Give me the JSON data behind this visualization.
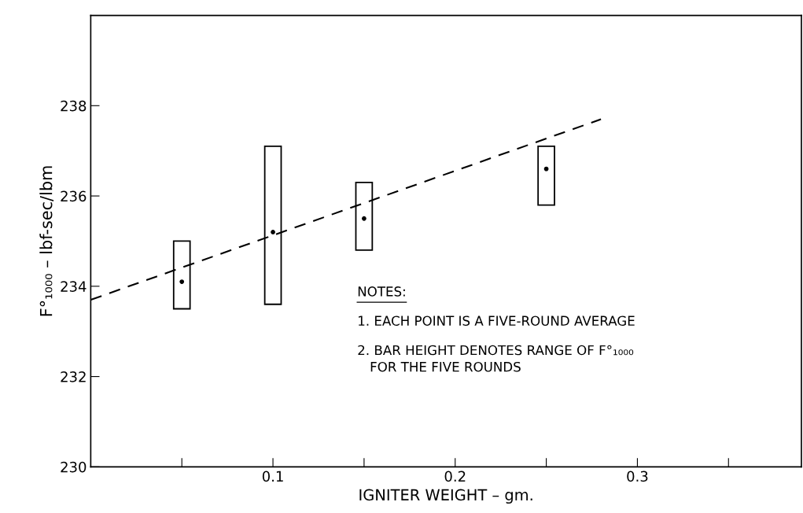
{
  "chart_data": {
    "type": "bar",
    "xlabel": "IGNITER WEIGHT – gm.",
    "ylabel": "F°₁₀₀₀ – lbf-sec/lbm",
    "x": [
      0.05,
      0.1,
      0.15,
      0.25
    ],
    "xlim": [
      0,
      0.39
    ],
    "xticks": [
      {
        "value": 0.05,
        "label": null
      },
      0.1,
      {
        "value": 0.15,
        "label": null
      },
      0.2,
      {
        "value": 0.25,
        "label": null
      },
      0.3,
      {
        "value": 0.35,
        "label": null
      }
    ],
    "ylim": [
      230,
      240
    ],
    "yticks": [
      230,
      232,
      234,
      236,
      238
    ],
    "grid": false,
    "series": [
      {
        "color": "#ffffff",
        "base": [
          233.5,
          233.6,
          234.8,
          235.8
        ],
        "values": [
          1.5,
          3.5,
          1.5,
          1.3
        ]
      },
      {
        "type": "scatter",
        "color": "#000000",
        "marker": "circle",
        "values": [
          234.1,
          235.2,
          235.5,
          236.6
        ]
      },
      {
        "type": "line",
        "color": "#000000",
        "line_style": "dashed",
        "x": [
          0,
          0.28
        ],
        "values": [
          233.7,
          237.7
        ]
      }
    ],
    "annotations": [
      "NOTES:",
      "1. EACH POINT IS A FIVE-ROUND AVERAGE",
      "2. BAR HEIGHT DENOTES RANGE OF F°₁₀₀₀\n   FOR THE FIVE ROUNDS"
    ]
  }
}
